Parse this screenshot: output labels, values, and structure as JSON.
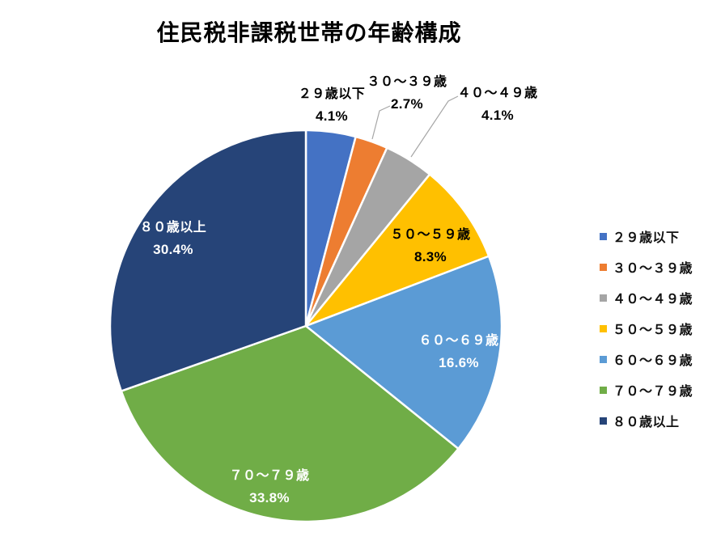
{
  "title": "住民税非課税世帯の年齢構成",
  "chart_data": {
    "type": "pie",
    "title": "住民税非課税世帯の年齢構成",
    "categories": [
      "２９歳以下",
      "３０～３９歳",
      "４０～４９歳",
      "５０～５９歳",
      "６０～６９歳",
      "７０～７９歳",
      "８０歳以上"
    ],
    "values": [
      4.1,
      2.7,
      4.1,
      8.3,
      16.6,
      33.8,
      30.4
    ],
    "percent_labels": [
      "4.1%",
      "2.7%",
      "4.1%",
      "8.3%",
      "16.6%",
      "33.8%",
      "30.4%"
    ],
    "colors": [
      "#4472C4",
      "#ED7D31",
      "#A5A5A5",
      "#FFC000",
      "#5B9BD5",
      "#70AD47",
      "#264478"
    ],
    "start_angle_deg": 0,
    "direction": "clockwise",
    "total": 100.0,
    "legend_position": "right",
    "label_placement": [
      "outside",
      "outside",
      "outside",
      "inside",
      "inside",
      "inside",
      "inside"
    ],
    "leader_line_color": "#A6A6A6",
    "slice_border_color": "#FFFFFF",
    "background_color": "#FFFFFF"
  }
}
